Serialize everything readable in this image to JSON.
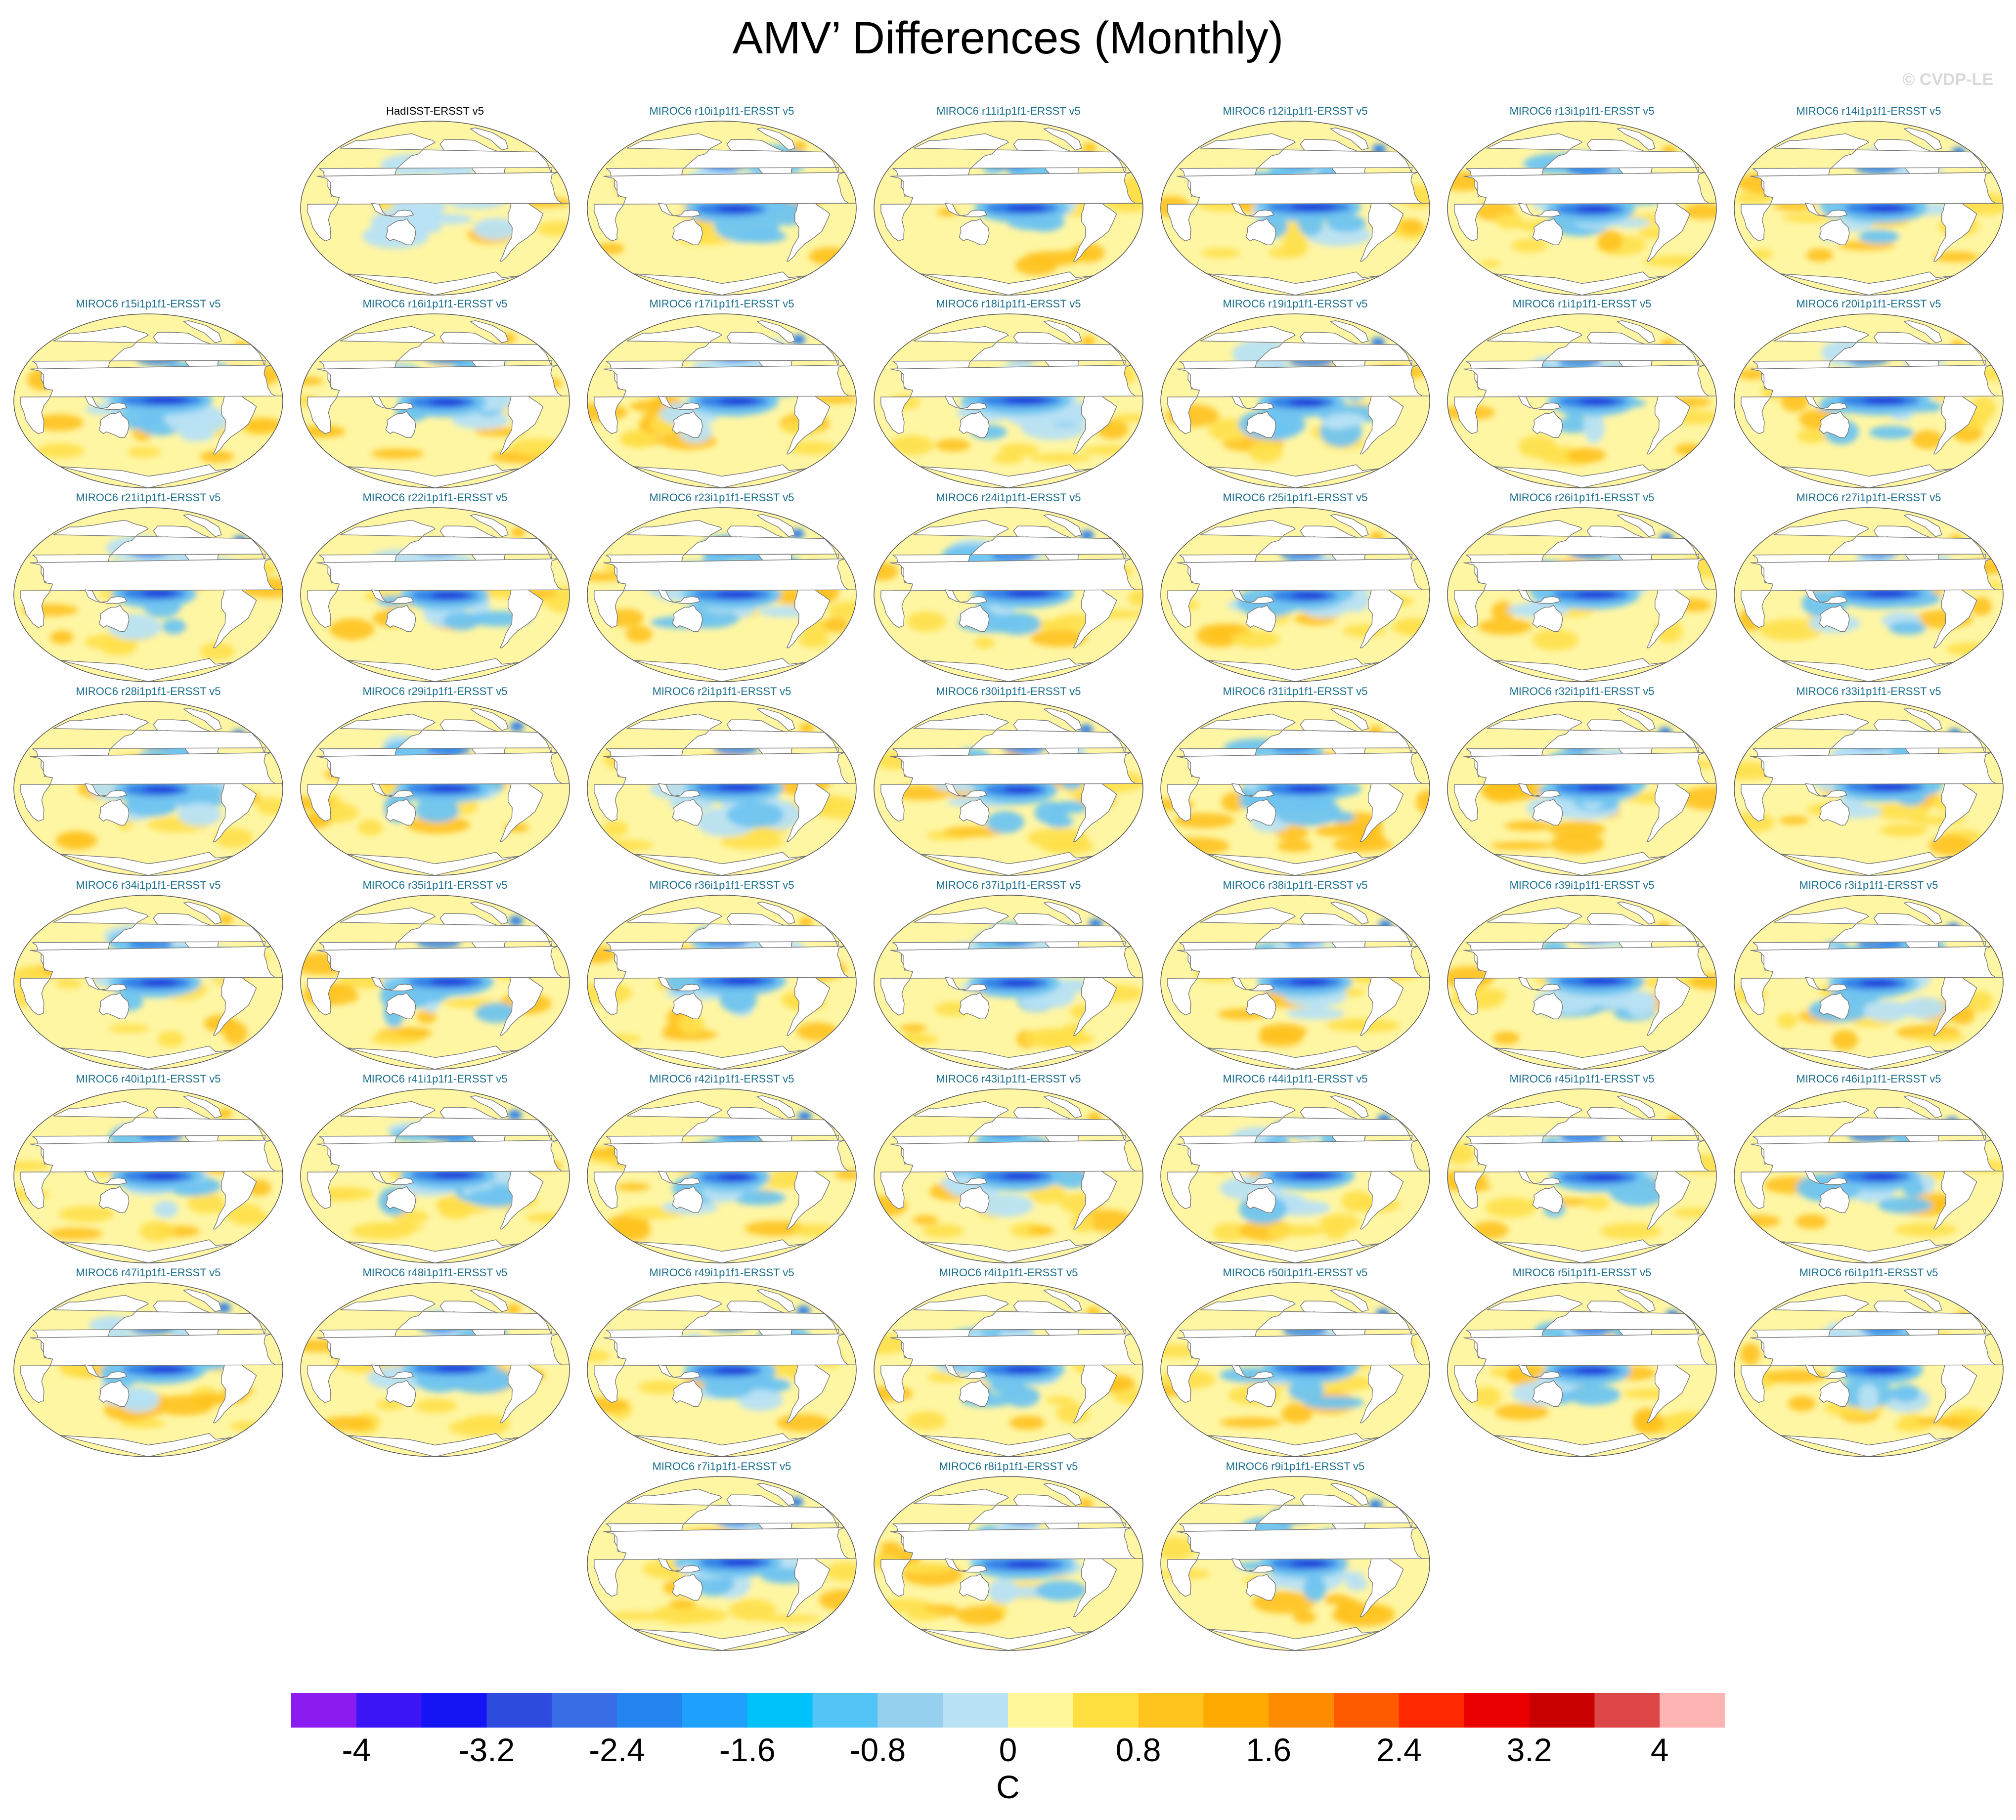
{
  "title": "AMV’ Differences (Monthly)",
  "watermark": "© CVDP-LE",
  "panels": [
    {
      "label": "HadISST-ERSST v5",
      "type": "obs"
    },
    {
      "label": "MIROC6 r10i1p1f1-ERSST v5"
    },
    {
      "label": "MIROC6 r11i1p1f1-ERSST v5"
    },
    {
      "label": "MIROC6 r12i1p1f1-ERSST v5"
    },
    {
      "label": "MIROC6 r13i1p1f1-ERSST v5"
    },
    {
      "label": "MIROC6 r14i1p1f1-ERSST v5"
    },
    {
      "label": "MIROC6 r15i1p1f1-ERSST v5"
    },
    {
      "label": "MIROC6 r16i1p1f1-ERSST v5"
    },
    {
      "label": "MIROC6 r17i1p1f1-ERSST v5"
    },
    {
      "label": "MIROC6 r18i1p1f1-ERSST v5"
    },
    {
      "label": "MIROC6 r19i1p1f1-ERSST v5"
    },
    {
      "label": "MIROC6 r1i1p1f1-ERSST v5"
    },
    {
      "label": "MIROC6 r20i1p1f1-ERSST v5"
    },
    {
      "label": "MIROC6 r21i1p1f1-ERSST v5"
    },
    {
      "label": "MIROC6 r22i1p1f1-ERSST v5"
    },
    {
      "label": "MIROC6 r23i1p1f1-ERSST v5"
    },
    {
      "label": "MIROC6 r24i1p1f1-ERSST v5"
    },
    {
      "label": "MIROC6 r25i1p1f1-ERSST v5"
    },
    {
      "label": "MIROC6 r26i1p1f1-ERSST v5"
    },
    {
      "label": "MIROC6 r27i1p1f1-ERSST v5"
    },
    {
      "label": "MIROC6 r28i1p1f1-ERSST v5"
    },
    {
      "label": "MIROC6 r29i1p1f1-ERSST v5"
    },
    {
      "label": "MIROC6 r2i1p1f1-ERSST v5"
    },
    {
      "label": "MIROC6 r30i1p1f1-ERSST v5"
    },
    {
      "label": "MIROC6 r31i1p1f1-ERSST v5"
    },
    {
      "label": "MIROC6 r32i1p1f1-ERSST v5"
    },
    {
      "label": "MIROC6 r33i1p1f1-ERSST v5"
    },
    {
      "label": "MIROC6 r34i1p1f1-ERSST v5"
    },
    {
      "label": "MIROC6 r35i1p1f1-ERSST v5"
    },
    {
      "label": "MIROC6 r36i1p1f1-ERSST v5"
    },
    {
      "label": "MIROC6 r37i1p1f1-ERSST v5"
    },
    {
      "label": "MIROC6 r38i1p1f1-ERSST v5"
    },
    {
      "label": "MIROC6 r39i1p1f1-ERSST v5"
    },
    {
      "label": "MIROC6 r3i1p1f1-ERSST v5"
    },
    {
      "label": "MIROC6 r40i1p1f1-ERSST v5"
    },
    {
      "label": "MIROC6 r41i1p1f1-ERSST v5"
    },
    {
      "label": "MIROC6 r42i1p1f1-ERSST v5"
    },
    {
      "label": "MIROC6 r43i1p1f1-ERSST v5"
    },
    {
      "label": "MIROC6 r44i1p1f1-ERSST v5"
    },
    {
      "label": "MIROC6 r45i1p1f1-ERSST v5"
    },
    {
      "label": "MIROC6 r46i1p1f1-ERSST v5"
    },
    {
      "label": "MIROC6 r47i1p1f1-ERSST v5"
    },
    {
      "label": "MIROC6 r48i1p1f1-ERSST v5"
    },
    {
      "label": "MIROC6 r49i1p1f1-ERSST v5"
    },
    {
      "label": "MIROC6 r4i1p1f1-ERSST v5"
    },
    {
      "label": "MIROC6 r50i1p1f1-ERSST v5"
    },
    {
      "label": "MIROC6 r5i1p1f1-ERSST v5"
    },
    {
      "label": "MIROC6 r6i1p1f1-ERSST v5"
    },
    {
      "label": "MIROC6 r7i1p1f1-ERSST v5"
    },
    {
      "label": "MIROC6 r8i1p1f1-ERSST v5"
    },
    {
      "label": "MIROC6 r9i1p1f1-ERSST v5"
    }
  ],
  "colorbar": {
    "units": "C",
    "colors": [
      "#8a1cf0",
      "#3c14f5",
      "#1414f5",
      "#2e4be0",
      "#3a6ee6",
      "#2484f0",
      "#1ea0ff",
      "#00c2fa",
      "#52c4f6",
      "#96d0ee",
      "#b8e2f4",
      "#fff79a",
      "#ffe040",
      "#ffc41e",
      "#ffaa00",
      "#ff8c00",
      "#ff5a00",
      "#ff2800",
      "#eb0000",
      "#c80000",
      "#dc4646",
      "#ffb4b4"
    ],
    "ticks": [
      "-4",
      "-3.2",
      "-2.4",
      "-1.6",
      "-0.8",
      "0",
      "0.8",
      "1.6",
      "2.4",
      "3.2",
      "4"
    ]
  },
  "palette": {
    "ocean_neutral": "#fff6a4",
    "warm1": "#ffe04a",
    "warm2": "#ffc21e",
    "cool1": "#b8e2f4",
    "cool2": "#6fc4f0",
    "cool3": "#2e7fe6",
    "cool4": "#2020d8",
    "land": "#ffffff",
    "coast": "#777777"
  }
}
